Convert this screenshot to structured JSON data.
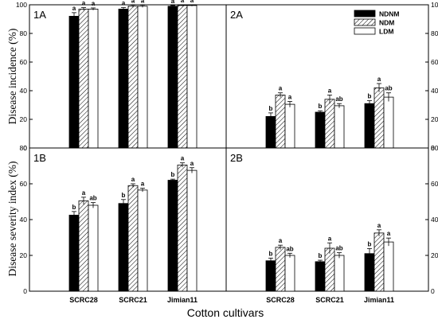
{
  "figure": {
    "ylabel_top": "Disease incidence (%)",
    "ylabel_bottom": "Disease severity index (%)",
    "xlabel": "Cotton cultivars"
  },
  "colors": {
    "NDNM": "#000000",
    "NDM": "hatched",
    "LDM": "#ffffff"
  },
  "legend": [
    "NDNM",
    "NDM",
    "LDM"
  ],
  "chart_data": [
    {
      "type": "bar",
      "panel": "1A",
      "categories": [
        "SCRC28",
        "SCRC21",
        "Jimian11"
      ],
      "series": [
        {
          "name": "NDNM",
          "values": [
            92,
            97,
            99
          ],
          "errors": [
            2.5,
            1,
            0.5
          ],
          "sig": [
            "a",
            "a",
            "a"
          ]
        },
        {
          "name": "NDM",
          "values": [
            97,
            99,
            99.5
          ],
          "errors": [
            1,
            0.8,
            0.5
          ],
          "sig": [
            "a",
            "a",
            "a"
          ]
        },
        {
          "name": "LDM",
          "values": [
            97,
            99,
            99.5
          ],
          "errors": [
            0.8,
            0.8,
            0.5
          ],
          "sig": [
            "a",
            "a",
            "a"
          ]
        }
      ],
      "ylim": [
        0,
        100
      ],
      "yticks": [
        0,
        20,
        40,
        60,
        80,
        100
      ],
      "axis_side": "left",
      "legend_position": "none"
    },
    {
      "type": "bar",
      "panel": "2A",
      "categories": [
        "SCRC28",
        "SCRC21",
        "Jimian11"
      ],
      "series": [
        {
          "name": "NDNM",
          "values": [
            22,
            25,
            31
          ],
          "errors": [
            2.5,
            1,
            2
          ],
          "sig": [
            "b",
            "b",
            "b"
          ]
        },
        {
          "name": "NDM",
          "values": [
            37,
            34,
            42
          ],
          "errors": [
            1.5,
            3,
            3
          ],
          "sig": [
            "a",
            "a",
            "a"
          ]
        },
        {
          "name": "LDM",
          "values": [
            30.5,
            29.5,
            35.5
          ],
          "errors": [
            2,
            1.5,
            3
          ],
          "sig": [
            "a",
            "ab",
            "ab"
          ]
        }
      ],
      "ylim": [
        0,
        100
      ],
      "yticks": [
        0,
        20,
        40,
        60,
        80,
        100
      ],
      "axis_side": "right",
      "legend_position": "top-right"
    },
    {
      "type": "bar",
      "panel": "1B",
      "categories": [
        "SCRC28",
        "SCRC21",
        "Jimian11"
      ],
      "series": [
        {
          "name": "NDNM",
          "values": [
            42.5,
            49,
            62
          ],
          "errors": [
            2,
            2.2,
            0.6
          ],
          "sig": [
            "b",
            "b",
            "b"
          ]
        },
        {
          "name": "NDM",
          "values": [
            50.5,
            59,
            70.5
          ],
          "errors": [
            2,
            1,
            1.2
          ],
          "sig": [
            "a",
            "a",
            "a"
          ]
        },
        {
          "name": "LDM",
          "values": [
            48,
            56.5,
            67.5
          ],
          "errors": [
            1.5,
            1,
            1.5
          ],
          "sig": [
            "ab",
            "a",
            "a"
          ]
        }
      ],
      "ylim": [
        0,
        80
      ],
      "yticks": [
        0,
        20,
        40,
        60,
        80
      ],
      "axis_side": "left",
      "legend_position": "none"
    },
    {
      "type": "bar",
      "panel": "2B",
      "categories": [
        "SCRC28",
        "SCRC21",
        "Jimian11"
      ],
      "series": [
        {
          "name": "NDNM",
          "values": [
            17,
            16.5,
            21
          ],
          "errors": [
            1.5,
            0.8,
            2.8
          ],
          "sig": [
            "b",
            "b",
            "b"
          ]
        },
        {
          "name": "NDM",
          "values": [
            24.5,
            24,
            32.5
          ],
          "errors": [
            1.2,
            3,
            1.8
          ],
          "sig": [
            "a",
            "a",
            "a"
          ]
        },
        {
          "name": "LDM",
          "values": [
            20,
            20,
            27.5
          ],
          "errors": [
            1.2,
            1.5,
            2.2
          ],
          "sig": [
            "ab",
            "ab",
            "a"
          ]
        }
      ],
      "ylim": [
        0,
        80
      ],
      "yticks": [
        0,
        20,
        40,
        60,
        80
      ],
      "axis_side": "right",
      "legend_position": "none"
    }
  ]
}
